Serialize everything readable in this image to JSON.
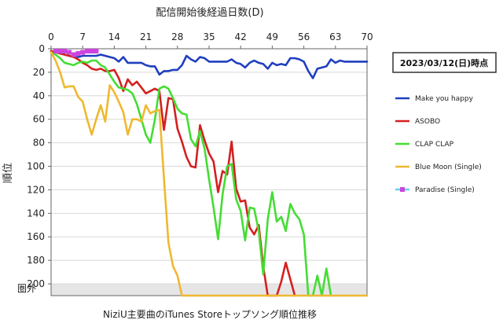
{
  "chart_data": {
    "type": "line",
    "title": "NiziU主要曲のiTunes Storeトップソング順位推移",
    "xlabel": "配信開始後経過日数(D)",
    "ylabel": "順位",
    "date_label": "2023/03/12(日)時点",
    "out_label": "圏外",
    "xlim": [
      0,
      70
    ],
    "ylim": [
      0,
      210
    ],
    "y_inverted": true,
    "x_axis_position": "top",
    "x_ticks": [
      0,
      7,
      14,
      21,
      28,
      35,
      42,
      49,
      56,
      63,
      70
    ],
    "y_ticks": [
      0,
      20,
      40,
      60,
      80,
      100,
      120,
      140,
      160,
      180,
      200
    ],
    "out_of_chart_value": 210,
    "legend_position": "right",
    "colors": {
      "make_you_happy": "#1f3fbf",
      "asobo": "#d42020",
      "clap_clap": "#44dd33",
      "blue_moon": "#f0b830",
      "paradise_line": "#5ad8e8",
      "paradise_marker": "#cc44dd",
      "out_band": "#e6e6e6"
    },
    "series": [
      {
        "name": "Make you happy",
        "color": "#1f3fbf",
        "marker": "none",
        "points": [
          [
            0,
            2
          ],
          [
            1,
            3
          ],
          [
            2,
            4
          ],
          [
            3,
            5
          ],
          [
            4,
            6
          ],
          [
            5,
            7
          ],
          [
            6,
            7
          ],
          [
            7,
            6
          ],
          [
            8,
            6
          ],
          [
            9,
            6
          ],
          [
            10,
            6
          ],
          [
            11,
            5
          ],
          [
            12,
            6
          ],
          [
            13,
            7
          ],
          [
            14,
            8
          ],
          [
            15,
            11
          ],
          [
            16,
            7
          ],
          [
            17,
            12
          ],
          [
            18,
            12
          ],
          [
            19,
            12
          ],
          [
            20,
            12
          ],
          [
            21,
            14
          ],
          [
            22,
            15
          ],
          [
            23,
            15
          ],
          [
            24,
            22
          ],
          [
            25,
            19
          ],
          [
            26,
            19
          ],
          [
            27,
            18
          ],
          [
            28,
            18
          ],
          [
            29,
            14
          ],
          [
            30,
            6
          ],
          [
            31,
            9
          ],
          [
            32,
            11
          ],
          [
            33,
            7
          ],
          [
            34,
            8
          ],
          [
            35,
            11
          ],
          [
            36,
            11
          ],
          [
            37,
            11
          ],
          [
            38,
            11
          ],
          [
            39,
            11
          ],
          [
            40,
            9
          ],
          [
            41,
            12
          ],
          [
            42,
            13
          ],
          [
            43,
            16
          ],
          [
            44,
            12
          ],
          [
            45,
            10
          ],
          [
            46,
            12
          ],
          [
            47,
            13
          ],
          [
            48,
            17
          ],
          [
            49,
            12
          ],
          [
            50,
            14
          ],
          [
            51,
            13
          ],
          [
            52,
            14
          ],
          [
            53,
            8
          ],
          [
            54,
            8
          ],
          [
            55,
            9
          ],
          [
            56,
            11
          ],
          [
            57,
            19
          ],
          [
            58,
            25
          ],
          [
            59,
            17
          ],
          [
            60,
            16
          ],
          [
            61,
            15
          ],
          [
            62,
            9
          ],
          [
            63,
            12
          ],
          [
            64,
            10
          ],
          [
            65,
            11
          ],
          [
            66,
            11
          ],
          [
            67,
            11
          ],
          [
            68,
            11
          ],
          [
            69,
            11
          ],
          [
            70,
            11
          ]
        ]
      },
      {
        "name": "ASOBO",
        "color": "#d42020",
        "marker": "none",
        "points": [
          [
            0,
            2
          ],
          [
            1,
            3
          ],
          [
            2,
            4
          ],
          [
            3,
            5
          ],
          [
            4,
            6
          ],
          [
            5,
            7
          ],
          [
            6,
            9
          ],
          [
            7,
            12
          ],
          [
            8,
            14
          ],
          [
            9,
            17
          ],
          [
            10,
            18
          ],
          [
            11,
            17
          ],
          [
            12,
            19
          ],
          [
            13,
            19
          ],
          [
            14,
            18
          ],
          [
            15,
            25
          ],
          [
            16,
            36
          ],
          [
            17,
            26
          ],
          [
            18,
            31
          ],
          [
            19,
            28
          ],
          [
            20,
            33
          ],
          [
            21,
            38
          ],
          [
            22,
            36
          ],
          [
            23,
            34
          ],
          [
            24,
            36
          ],
          [
            25,
            69
          ],
          [
            26,
            42
          ],
          [
            27,
            43
          ],
          [
            28,
            68
          ],
          [
            29,
            79
          ],
          [
            30,
            92
          ],
          [
            31,
            100
          ],
          [
            32,
            101
          ],
          [
            33,
            65
          ],
          [
            34,
            78
          ],
          [
            35,
            89
          ],
          [
            36,
            96
          ],
          [
            37,
            122
          ],
          [
            38,
            104
          ],
          [
            39,
            107
          ],
          [
            40,
            79
          ],
          [
            41,
            119
          ],
          [
            42,
            130
          ],
          [
            43,
            129
          ],
          [
            44,
            152
          ],
          [
            45,
            158
          ],
          [
            46,
            150
          ],
          [
            47,
            185
          ],
          [
            48,
            210
          ],
          [
            49,
            210
          ],
          [
            50,
            210
          ],
          [
            51,
            198
          ],
          [
            52,
            182
          ],
          [
            53,
            196
          ],
          [
            54,
            210
          ]
        ]
      },
      {
        "name": "CLAP CLAP",
        "color": "#44dd33",
        "marker": "none",
        "points": [
          [
            0,
            3
          ],
          [
            1,
            5
          ],
          [
            2,
            8
          ],
          [
            3,
            12
          ],
          [
            4,
            13
          ],
          [
            5,
            14
          ],
          [
            6,
            12
          ],
          [
            7,
            11
          ],
          [
            8,
            12
          ],
          [
            9,
            10
          ],
          [
            10,
            10
          ],
          [
            11,
            14
          ],
          [
            12,
            16
          ],
          [
            13,
            22
          ],
          [
            14,
            28
          ],
          [
            15,
            33
          ],
          [
            16,
            34
          ],
          [
            17,
            35
          ],
          [
            18,
            38
          ],
          [
            19,
            47
          ],
          [
            20,
            60
          ],
          [
            21,
            73
          ],
          [
            22,
            80
          ],
          [
            23,
            60
          ],
          [
            24,
            34
          ],
          [
            25,
            32
          ],
          [
            26,
            34
          ],
          [
            27,
            42
          ],
          [
            28,
            51
          ],
          [
            29,
            55
          ],
          [
            30,
            56
          ],
          [
            31,
            77
          ],
          [
            32,
            83
          ],
          [
            33,
            70
          ],
          [
            34,
            85
          ],
          [
            35,
            111
          ],
          [
            36,
            135
          ],
          [
            37,
            162
          ],
          [
            38,
            124
          ],
          [
            39,
            100
          ],
          [
            40,
            98
          ],
          [
            41,
            128
          ],
          [
            42,
            138
          ],
          [
            43,
            163
          ],
          [
            44,
            135
          ],
          [
            45,
            136
          ],
          [
            46,
            155
          ],
          [
            47,
            192
          ],
          [
            48,
            145
          ],
          [
            49,
            122
          ],
          [
            50,
            147
          ],
          [
            51,
            143
          ],
          [
            52,
            155
          ],
          [
            53,
            132
          ],
          [
            54,
            140
          ],
          [
            55,
            145
          ],
          [
            56,
            158
          ],
          [
            57,
            210
          ],
          [
            58,
            210
          ],
          [
            59,
            193
          ],
          [
            60,
            210
          ],
          [
            61,
            187
          ],
          [
            62,
            210
          ]
        ]
      },
      {
        "name": "Blue Moon (Single)",
        "color": "#f0b830",
        "marker": "none",
        "points": [
          [
            0,
            3
          ],
          [
            1,
            10
          ],
          [
            2,
            20
          ],
          [
            3,
            33
          ],
          [
            4,
            32
          ],
          [
            5,
            32
          ],
          [
            6,
            41
          ],
          [
            7,
            45
          ],
          [
            8,
            60
          ],
          [
            9,
            73
          ],
          [
            10,
            60
          ],
          [
            11,
            48
          ],
          [
            12,
            62
          ],
          [
            13,
            31
          ],
          [
            14,
            37
          ],
          [
            15,
            45
          ],
          [
            16,
            54
          ],
          [
            17,
            73
          ],
          [
            18,
            60
          ],
          [
            19,
            60
          ],
          [
            20,
            62
          ],
          [
            21,
            48
          ],
          [
            22,
            55
          ],
          [
            23,
            53
          ],
          [
            24,
            52
          ],
          [
            25,
            110
          ],
          [
            26,
            165
          ],
          [
            27,
            185
          ],
          [
            28,
            193
          ],
          [
            29,
            210
          ],
          [
            30,
            210
          ],
          [
            31,
            210
          ],
          [
            32,
            210
          ],
          [
            33,
            210
          ],
          [
            34,
            210
          ],
          [
            35,
            210
          ],
          [
            36,
            210
          ],
          [
            37,
            210
          ],
          [
            38,
            210
          ],
          [
            39,
            210
          ],
          [
            40,
            210
          ],
          [
            41,
            210
          ],
          [
            42,
            210
          ],
          [
            43,
            210
          ],
          [
            44,
            210
          ],
          [
            45,
            210
          ],
          [
            46,
            210
          ],
          [
            47,
            210
          ],
          [
            48,
            210
          ],
          [
            49,
            210
          ],
          [
            50,
            210
          ],
          [
            51,
            210
          ],
          [
            52,
            210
          ],
          [
            53,
            210
          ],
          [
            54,
            210
          ],
          [
            55,
            210
          ],
          [
            56,
            210
          ],
          [
            57,
            210
          ],
          [
            58,
            210
          ],
          [
            59,
            210
          ],
          [
            60,
            210
          ],
          [
            61,
            210
          ],
          [
            62,
            210
          ],
          [
            63,
            210
          ],
          [
            64,
            210
          ],
          [
            65,
            210
          ],
          [
            66,
            210
          ],
          [
            67,
            210
          ],
          [
            68,
            210
          ],
          [
            69,
            210
          ],
          [
            70,
            210
          ]
        ]
      },
      {
        "name": "Paradise (Single)",
        "color": "#5ad8e8",
        "marker": "square",
        "marker_color": "#cc44dd",
        "points": [
          [
            1,
            2
          ],
          [
            2,
            2
          ],
          [
            3,
            2
          ],
          [
            4,
            3
          ],
          [
            5,
            5
          ],
          [
            6,
            4
          ],
          [
            7,
            3
          ],
          [
            8,
            2
          ],
          [
            9,
            2
          ],
          [
            10,
            2
          ]
        ]
      }
    ]
  }
}
